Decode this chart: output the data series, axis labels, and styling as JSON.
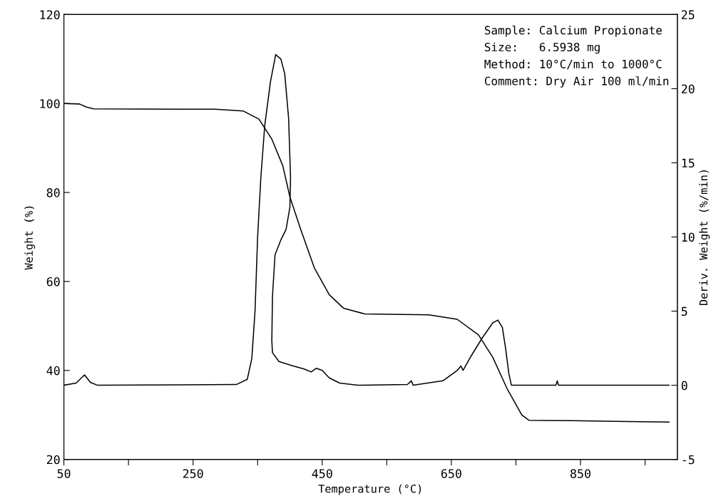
{
  "chart_data": {
    "type": "line",
    "xlabel": "Temperature (°C)",
    "ylabel": "Weight (%)",
    "y2label": "Deriv. Weight (%/min)",
    "annotations": [
      "Sample: Calcium Propionate",
      "Size:   6.5938 mg",
      "Method: 10°C/min to 1000°C",
      "Comment: Dry Air 100 ml/min"
    ],
    "xlim": [
      50,
      1000
    ],
    "xticks": [
      50,
      {
        "value": 150,
        "label": null
      },
      250,
      {
        "value": 350,
        "label": null
      },
      450,
      {
        "value": 550,
        "label": null
      },
      650,
      {
        "value": 750,
        "label": null
      },
      850,
      {
        "value": 950,
        "label": null
      }
    ],
    "ylim": [
      20,
      120
    ],
    "yticks": [
      20,
      40,
      60,
      80,
      100,
      120
    ],
    "y2lim": [
      -5,
      25
    ],
    "y2ticks": [
      -5,
      0,
      5,
      10,
      15,
      20,
      25
    ],
    "grid": false,
    "legend": false,
    "marker": "none",
    "line_style": "solid",
    "series": [
      {
        "color": "#000000",
        "x": [
          50,
          74,
          85,
          96,
          284,
          328,
          352,
          372,
          389,
          400,
          416,
          438,
          461,
          483,
          516,
          615,
          659,
          692,
          714,
          736,
          759,
          770,
          836,
          924,
          987
        ],
        "values": [
          100,
          99.9,
          99.2,
          98.8,
          98.7,
          98.3,
          96.5,
          92,
          86,
          79,
          72,
          63,
          57,
          54,
          52.7,
          52.5,
          51.5,
          48,
          43,
          36,
          30,
          28.8,
          28.7,
          28.5,
          28.4
        ]
      },
      {
        "color": "#000000",
        "axis": "y2",
        "x": [
          50,
          69,
          82,
          91,
          102,
          317,
          334,
          341,
          346,
          350,
          355,
          361,
          370,
          378,
          386,
          392,
          398,
          401,
          400,
          394,
          386,
          377,
          373,
          372,
          373,
          383,
          405,
          422,
          433,
          441,
          450,
          461,
          477,
          505,
          582,
          588,
          591,
          637,
          659,
          665,
          668,
          681,
          698,
          714,
          722,
          729,
          734,
          739,
          743,
          812,
          814,
          816,
          987
        ],
        "values": [
          0,
          0.15,
          0.7,
          0.2,
          0,
          0.05,
          0.4,
          1.8,
          5,
          10,
          14,
          17.5,
          20.5,
          22.3,
          22,
          21,
          18,
          14,
          12,
          10.5,
          9.8,
          8.8,
          6,
          3,
          2.2,
          1.6,
          1.3,
          1.1,
          0.9,
          1.15,
          1.0,
          0.5,
          0.15,
          0,
          0.05,
          0.3,
          0,
          0.3,
          1.0,
          1.3,
          1.0,
          2.0,
          3.2,
          4.2,
          4.4,
          3.9,
          2.5,
          0.8,
          0,
          0,
          0.3,
          0,
          0
        ]
      }
    ]
  }
}
